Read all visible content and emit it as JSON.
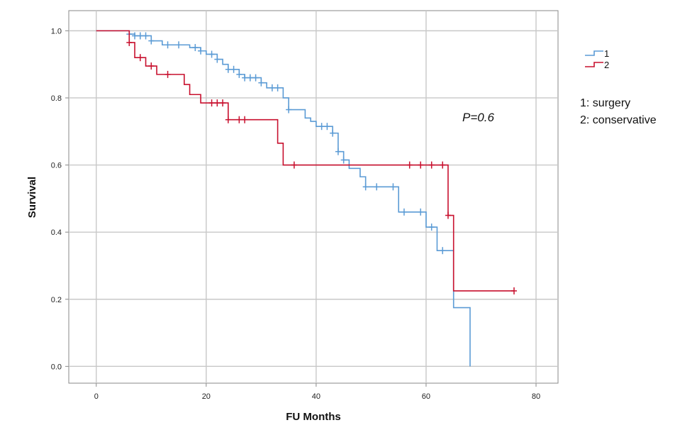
{
  "chart_data": {
    "type": "line",
    "subtype": "kaplan-meier-step",
    "xlabel": "FU Months",
    "ylabel": "Survival",
    "xlim": [
      -5,
      84
    ],
    "ylim": [
      -0.05,
      1.06
    ],
    "xticks": [
      0,
      20,
      40,
      60,
      80
    ],
    "yticks": [
      0.0,
      0.2,
      0.4,
      0.6,
      0.8,
      1.0
    ],
    "ytick_labels": [
      "0.0",
      "0.2",
      "0.4",
      "0.6",
      "0.8",
      "1.0"
    ],
    "grid": true,
    "legend_position": "right",
    "annotation": "P=0.6",
    "notes": [
      "1: surgery",
      "2: conservative"
    ],
    "series": [
      {
        "name": "1",
        "color": "#5b9bd5",
        "steps": [
          [
            0,
            1.0
          ],
          [
            6,
            0.99
          ],
          [
            7,
            0.985
          ],
          [
            10,
            0.97
          ],
          [
            12,
            0.958
          ],
          [
            17,
            0.95
          ],
          [
            19,
            0.94
          ],
          [
            20,
            0.93
          ],
          [
            22,
            0.915
          ],
          [
            23,
            0.9
          ],
          [
            24,
            0.885
          ],
          [
            26,
            0.87
          ],
          [
            27,
            0.86
          ],
          [
            30,
            0.845
          ],
          [
            31,
            0.83
          ],
          [
            34,
            0.8
          ],
          [
            35,
            0.765
          ],
          [
            38,
            0.74
          ],
          [
            39,
            0.73
          ],
          [
            40,
            0.715
          ],
          [
            43,
            0.695
          ],
          [
            44,
            0.64
          ],
          [
            45,
            0.615
          ],
          [
            46,
            0.59
          ],
          [
            48,
            0.565
          ],
          [
            49,
            0.535
          ],
          [
            55,
            0.46
          ],
          [
            60,
            0.415
          ],
          [
            62,
            0.345
          ],
          [
            65,
            0.175
          ],
          [
            68,
            0.0
          ]
        ],
        "end_x": 68,
        "censored": [
          6,
          7,
          8,
          9,
          10,
          13,
          15,
          18,
          19,
          21,
          22,
          24,
          25,
          26,
          27,
          28,
          29,
          30,
          32,
          33,
          35,
          41,
          42,
          43,
          44,
          45,
          49,
          51,
          54,
          56,
          59,
          61,
          63
        ]
      },
      {
        "name": "2",
        "color": "#c8102e",
        "steps": [
          [
            0,
            1.0
          ],
          [
            6,
            0.965
          ],
          [
            7,
            0.92
          ],
          [
            9,
            0.895
          ],
          [
            11,
            0.87
          ],
          [
            16,
            0.84
          ],
          [
            17,
            0.81
          ],
          [
            19,
            0.785
          ],
          [
            24,
            0.735
          ],
          [
            33,
            0.665
          ],
          [
            34,
            0.6
          ],
          [
            64,
            0.45
          ],
          [
            65,
            0.225
          ]
        ],
        "end_x": 76,
        "censored": [
          6,
          8,
          10,
          13,
          21,
          22,
          23,
          24,
          26,
          27,
          36,
          57,
          59,
          61,
          63,
          64,
          76
        ]
      }
    ]
  }
}
